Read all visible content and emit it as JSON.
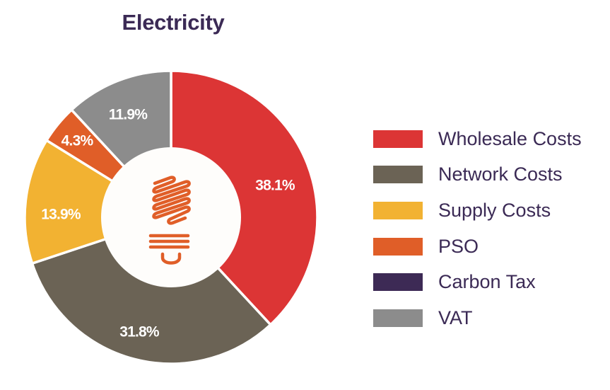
{
  "title": "Electricity",
  "chart_data": {
    "type": "pie",
    "subtype": "donut",
    "title": "Electricity",
    "categories": [
      "Wholesale Costs",
      "Network Costs",
      "Supply Costs",
      "PSO",
      "Carbon Tax",
      "VAT"
    ],
    "values": [
      38.1,
      31.8,
      13.9,
      4.3,
      0,
      11.9
    ],
    "unit": "%",
    "labels": [
      "38.1%",
      "31.8%",
      "13.9%",
      "4.3%",
      "",
      "11.9%"
    ],
    "colors": [
      "#dc3535",
      "#6b6355",
      "#f2b232",
      "#e05e28",
      "#3d2a55",
      "#8c8c8c"
    ],
    "start_angle_deg": 0,
    "direction": "clockwise",
    "legend_position": "right",
    "center_icon": "lightbulb-icon"
  },
  "legend": {
    "items": [
      {
        "label": "Wholesale Costs",
        "color": "#dc3535"
      },
      {
        "label": "Network Costs",
        "color": "#6b6355"
      },
      {
        "label": "Supply Costs",
        "color": "#f2b232"
      },
      {
        "label": "PSO",
        "color": "#e05e28"
      },
      {
        "label": "Carbon Tax",
        "color": "#3d2a55"
      },
      {
        "label": "VAT",
        "color": "#8c8c8c"
      }
    ]
  },
  "slices": [
    {
      "label": "38.1%"
    },
    {
      "label": "31.8%"
    },
    {
      "label": "13.9%"
    },
    {
      "label": "4.3%"
    },
    {
      "label": "11.9%"
    }
  ],
  "icon_color": "#e05e28"
}
